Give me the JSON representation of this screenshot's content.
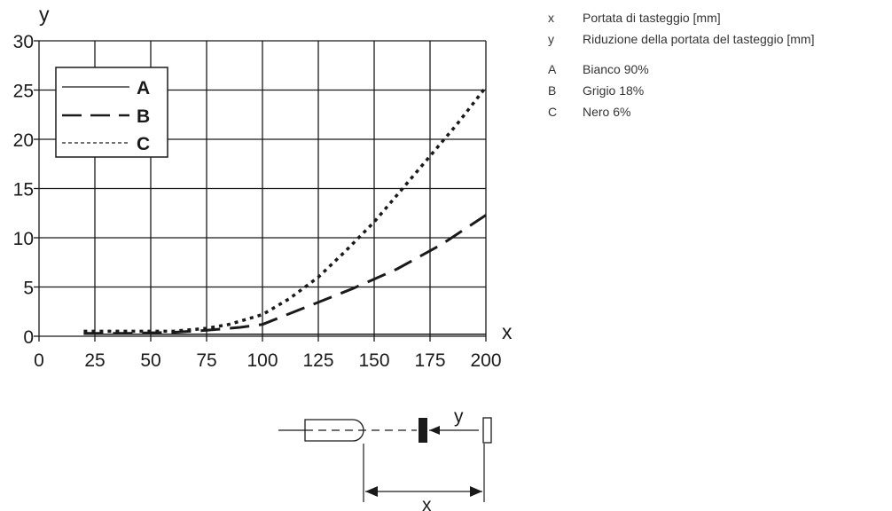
{
  "chart_data": {
    "type": "line",
    "title": "",
    "xlabel": "x",
    "ylabel": "y",
    "xlim": [
      0,
      200
    ],
    "ylim": [
      0,
      30
    ],
    "xticks": [
      0,
      25,
      50,
      75,
      100,
      125,
      150,
      175,
      200
    ],
    "yticks": [
      0,
      5,
      10,
      15,
      20,
      25,
      30
    ],
    "grid": true,
    "legend": {
      "placement": "top-left",
      "entries": [
        "A",
        "B",
        "C"
      ]
    },
    "series": [
      {
        "name": "A",
        "style": "solid",
        "color": "#1a1a1a",
        "x": [
          20,
          50,
          75,
          100,
          125,
          150,
          175,
          200
        ],
        "y": [
          0.2,
          0.2,
          0.2,
          0.2,
          0.2,
          0.2,
          0.2,
          0.2
        ]
      },
      {
        "name": "B",
        "style": "dashed",
        "color": "#1a1a1a",
        "x": [
          20,
          40,
          60,
          75,
          90,
          100,
          120,
          140,
          160,
          180,
          200
        ],
        "y": [
          0.3,
          0.3,
          0.4,
          0.6,
          0.9,
          1.2,
          3.0,
          4.8,
          6.8,
          9.3,
          12.3
        ]
      },
      {
        "name": "C",
        "style": "dotted",
        "color": "#1a1a1a",
        "x": [
          20,
          40,
          60,
          75,
          85,
          100,
          112,
          125,
          137,
          150,
          162,
          175,
          187,
          200
        ],
        "y": [
          0.5,
          0.5,
          0.5,
          0.8,
          1.2,
          2.2,
          3.8,
          6.0,
          8.6,
          11.6,
          14.8,
          18.3,
          21.5,
          25.3
        ]
      }
    ]
  },
  "key": [
    {
      "symbol": "x",
      "text": "Portata di tasteggio [mm]"
    },
    {
      "symbol": "y",
      "text": "Riduzione della portata del tasteggio [mm]"
    },
    {
      "symbol": "A",
      "text": "Bianco 90%"
    },
    {
      "symbol": "B",
      "text": "Grigio 18%"
    },
    {
      "symbol": "C",
      "text": "Nero 6%"
    }
  ],
  "schematic": {
    "x_label": "x",
    "y_label": "y"
  }
}
